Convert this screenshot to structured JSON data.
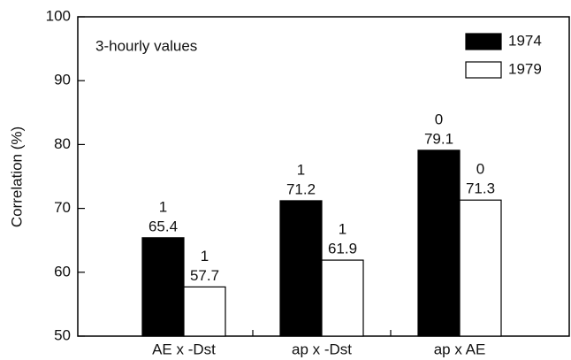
{
  "chart_data": {
    "type": "bar",
    "y_label": "Correlation (%)",
    "annotation": "3-hourly values",
    "categories": [
      "AE x -Dst",
      "ap x -Dst",
      "ap x AE"
    ],
    "series": [
      {
        "name": "1974",
        "color": "#000000",
        "values": [
          65.4,
          71.2,
          79.1
        ],
        "top_labels": [
          1,
          1,
          0
        ]
      },
      {
        "name": "1979",
        "color": "#ffffff",
        "values": [
          57.7,
          61.9,
          71.3
        ],
        "top_labels": [
          1,
          1,
          0
        ]
      }
    ],
    "ylim": [
      50,
      100
    ],
    "yticks": [
      50,
      60,
      70,
      80,
      90,
      100
    ],
    "legend": "top-right"
  }
}
